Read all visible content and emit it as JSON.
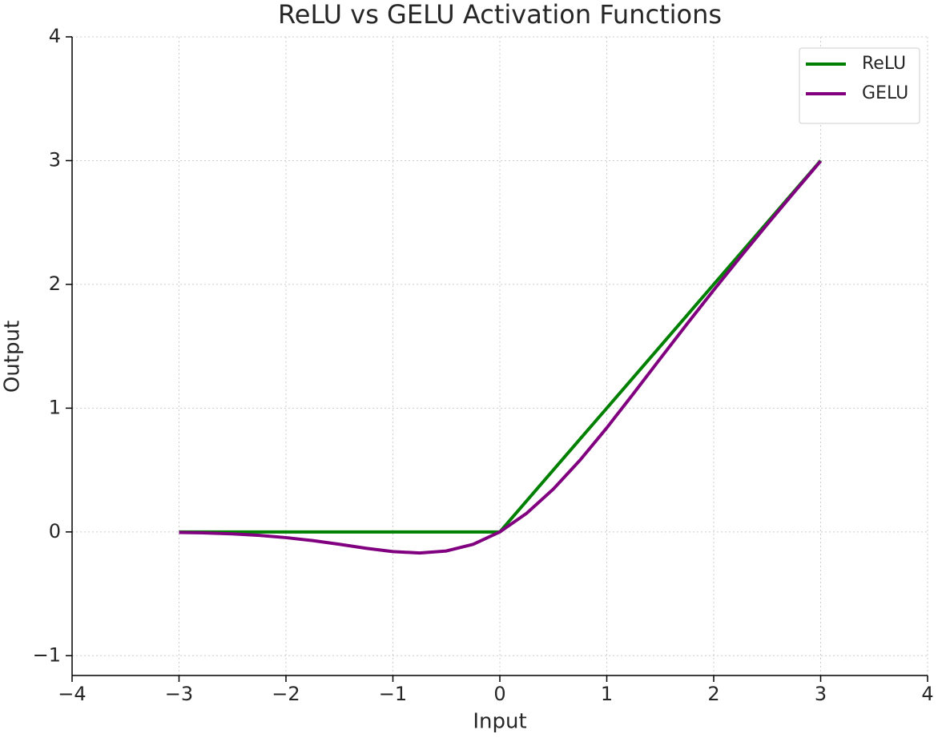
{
  "chart_data": {
    "type": "line",
    "title": "ReLU vs GELU Activation Functions",
    "x_label": "Input",
    "y_label": "Output",
    "x": [
      -3,
      -2.75,
      -2.5,
      -2.25,
      -2,
      -1.75,
      -1.5,
      -1.25,
      -1,
      -0.75,
      -0.5,
      -0.25,
      0,
      0.25,
      0.5,
      0.75,
      1,
      1.25,
      1.5,
      1.75,
      2,
      2.25,
      2.5,
      2.75,
      3
    ],
    "series": [
      {
        "name": "ReLU",
        "color": "#008000",
        "values": [
          0,
          0,
          0,
          0,
          0,
          0,
          0,
          0,
          0,
          0,
          0,
          0,
          0,
          0.25,
          0.5,
          0.75,
          1,
          1.25,
          1.5,
          1.75,
          2,
          2.25,
          2.5,
          2.75,
          3
        ]
      },
      {
        "name": "GELU",
        "color": "#800080",
        "values": [
          -0.004,
          -0.008,
          -0.016,
          -0.028,
          -0.046,
          -0.07,
          -0.1,
          -0.132,
          -0.159,
          -0.17,
          -0.154,
          -0.1,
          0,
          0.15,
          0.346,
          0.58,
          0.841,
          1.118,
          1.4,
          1.68,
          1.954,
          2.222,
          2.484,
          2.742,
          2.996
        ]
      }
    ],
    "xlim": [
      -4,
      4
    ],
    "xticks": [
      {
        "value": -4,
        "label": "−4"
      },
      {
        "value": -3,
        "label": "−3"
      },
      {
        "value": -2,
        "label": "−2"
      },
      {
        "value": -1,
        "label": "−1"
      },
      0,
      1,
      2,
      3,
      4
    ],
    "ylim": [
      -1.16,
      4
    ],
    "yticks": [
      {
        "value": -1,
        "label": "−1"
      },
      0,
      1,
      2,
      3,
      4
    ],
    "grid": true,
    "legend": "upper right"
  }
}
